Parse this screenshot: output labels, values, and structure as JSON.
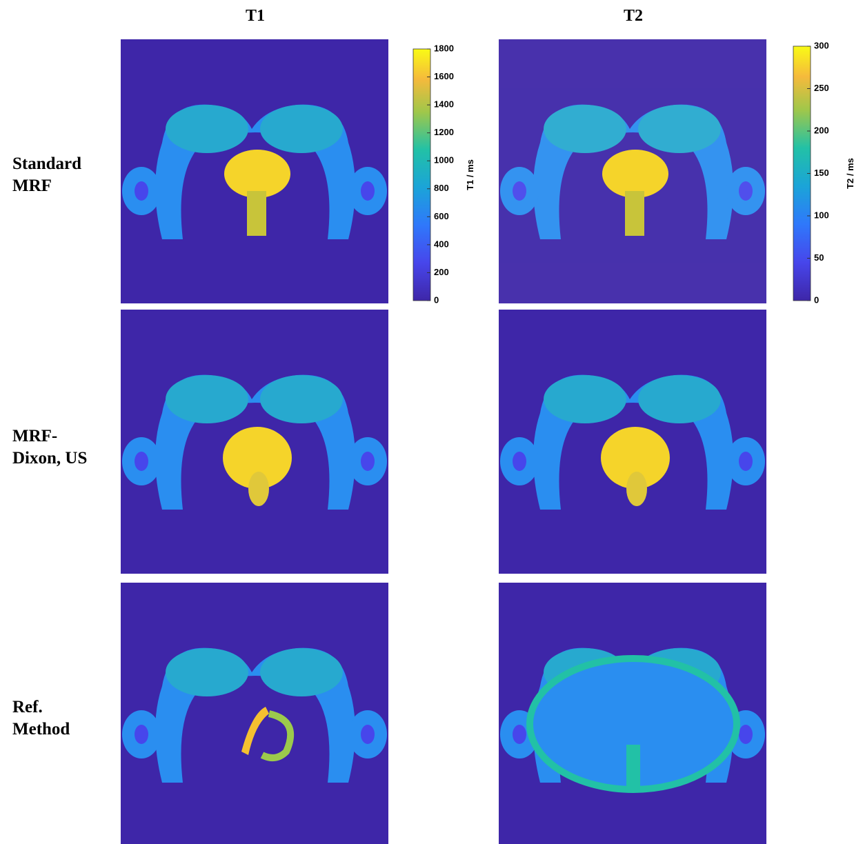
{
  "columns": [
    "T1",
    "T2"
  ],
  "rows": [
    [
      "Standard",
      "MRF"
    ],
    [
      "MRF-",
      "Dixon, US"
    ],
    [
      "Ref.",
      "Method"
    ]
  ],
  "colorbars": [
    {
      "label": "T1 / ms",
      "lim": [
        0,
        1800
      ],
      "ticks": [
        0,
        200,
        400,
        600,
        800,
        1000,
        1200,
        1400,
        1600,
        1800
      ]
    },
    {
      "label": "T2 / ms",
      "lim": [
        0,
        300
      ],
      "ticks": [
        0,
        50,
        100,
        150,
        200,
        250,
        300
      ]
    }
  ]
}
